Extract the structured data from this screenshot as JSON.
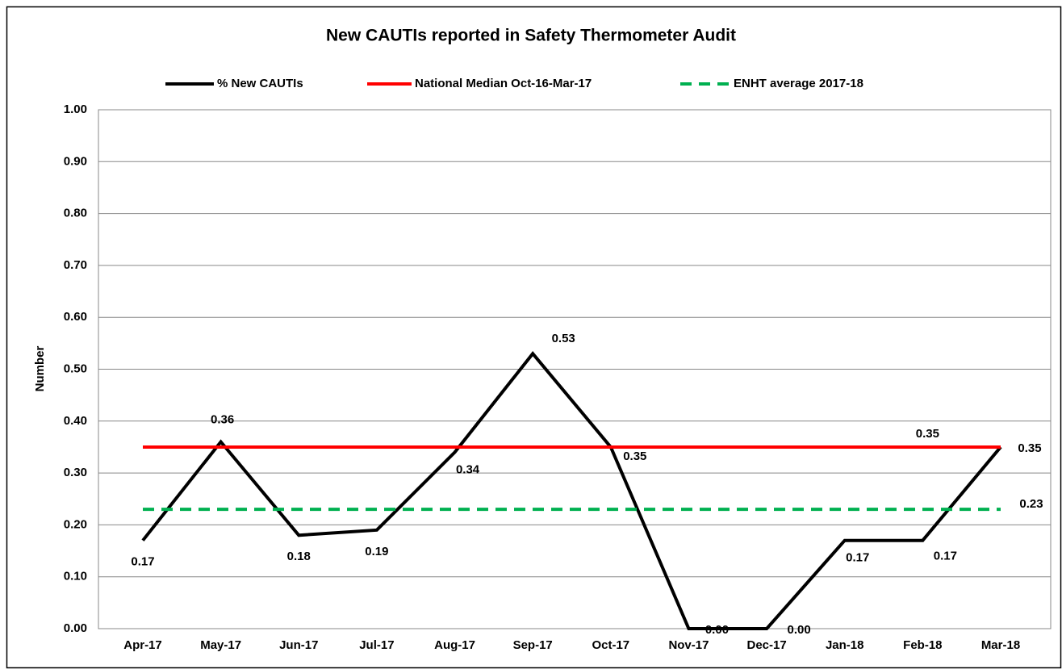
{
  "chart_data": {
    "type": "line",
    "title": "New CAUTIs reported in Safety Thermometer Audit",
    "y_label": "Number",
    "categories": [
      "Apr-17",
      "May-17",
      "Jun-17",
      "Jul-17",
      "Aug-17",
      "Sep-17",
      "Oct-17",
      "Nov-17",
      "Dec-17",
      "Jan-18",
      "Feb-18",
      "Mar-18"
    ],
    "series": [
      {
        "name": "% New CAUTIs",
        "color": "#000000",
        "dashed": false,
        "values": [
          0.17,
          0.36,
          0.18,
          0.19,
          0.34,
          0.53,
          0.35,
          0,
          0,
          0.17,
          0.17,
          0.35
        ],
        "value_labels": [
          "0.17",
          "0.36",
          "0.18",
          "0.19",
          "0.34",
          "0.53",
          "0.35",
          "0.00",
          "0.00",
          "0.17",
          "0.17",
          "0.35"
        ]
      },
      {
        "name": "National Median Oct-16-Mar-17",
        "color": "#ff0000",
        "dashed": false,
        "values": [
          0.35,
          0.35,
          0.35,
          0.35,
          0.35,
          0.35,
          0.35,
          0.35,
          0.35,
          0.35,
          0.35,
          0.35
        ],
        "value_labels": [
          null,
          null,
          null,
          null,
          null,
          null,
          null,
          null,
          null,
          null,
          "0.35",
          null
        ]
      },
      {
        "name": "ENHT average 2017-18",
        "color": "#00b050",
        "dashed": true,
        "values": [
          0.23,
          0.23,
          0.23,
          0.23,
          0.23,
          0.23,
          0.23,
          0.23,
          0.23,
          0.23,
          0.23,
          0.23
        ],
        "value_labels": [
          null,
          null,
          null,
          null,
          null,
          null,
          null,
          null,
          null,
          null,
          null,
          "0.23"
        ]
      }
    ],
    "ylim": [
      0,
      1
    ],
    "yticks": [
      {
        "value": 0,
        "label": "0.00"
      },
      {
        "value": 0.1,
        "label": "0.10"
      },
      {
        "value": 0.2,
        "label": "0.20"
      },
      {
        "value": 0.3,
        "label": "0.30"
      },
      {
        "value": 0.4,
        "label": "0.40"
      },
      {
        "value": 0.5,
        "label": "0.50"
      },
      {
        "value": 0.6,
        "label": "0.60"
      },
      {
        "value": 0.7,
        "label": "0.70"
      },
      {
        "value": 0.8,
        "label": "0.80"
      },
      {
        "value": 0.9,
        "label": "0.90"
      },
      {
        "value": 1,
        "label": "1.00"
      }
    ],
    "grid": true,
    "legend": "top"
  }
}
